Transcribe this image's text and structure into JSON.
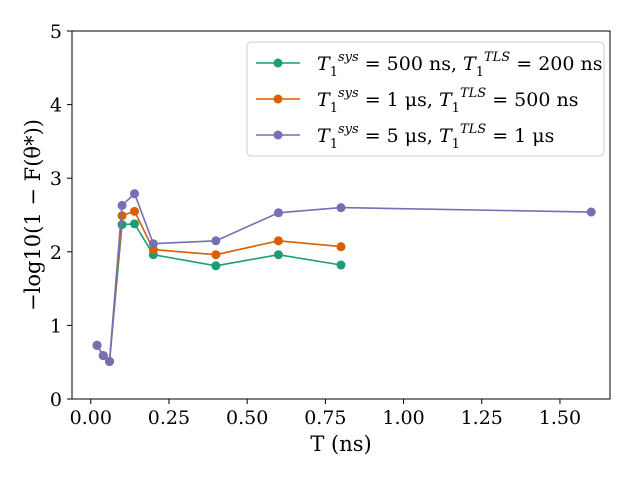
{
  "chart_data": {
    "type": "line",
    "title": "",
    "xlabel": "T (ns)",
    "ylabel": "−log10(1 − F(θ*))",
    "xlim": [
      -0.06,
      1.66
    ],
    "ylim": [
      0,
      5
    ],
    "xticks": [
      0.0,
      0.25,
      0.5,
      0.75,
      1.0,
      1.25,
      1.5
    ],
    "xtick_labels": [
      "0.00",
      "0.25",
      "0.50",
      "0.75",
      "1.00",
      "1.25",
      "1.50"
    ],
    "yticks": [
      0,
      1,
      2,
      3,
      4,
      5
    ],
    "ytick_labels": [
      "0",
      "1",
      "2",
      "3",
      "4",
      "5"
    ],
    "grid": false,
    "legend_position": "top-right",
    "series": [
      {
        "name": "T1^sys = 500 ns, T1^TLS = 200 ns",
        "legend_parts": [
          "T",
          "1",
          "sys",
          " = 500 ns, ",
          "T",
          "1",
          "TLS",
          " = 200 ns"
        ],
        "color": "#1b9e77",
        "x": [
          0.02,
          0.04,
          0.06,
          0.1,
          0.14,
          0.2,
          0.4,
          0.6,
          0.8
        ],
        "y": [
          0.73,
          0.59,
          0.51,
          2.37,
          2.38,
          1.96,
          1.81,
          1.96,
          1.82
        ]
      },
      {
        "name": "T1^sys = 1 μs, T1^TLS = 500 ns",
        "legend_parts": [
          "T",
          "1",
          "sys",
          " = 1 μs, ",
          "T",
          "1",
          "TLS",
          " = 500 ns"
        ],
        "color": "#d95f02",
        "x": [
          0.02,
          0.04,
          0.06,
          0.1,
          0.14,
          0.2,
          0.4,
          0.6,
          0.8
        ],
        "y": [
          0.73,
          0.59,
          0.51,
          2.49,
          2.55,
          2.03,
          1.96,
          2.15,
          2.07
        ]
      },
      {
        "name": "T1^sys = 5 μs, T1^TLS = 1 μs",
        "legend_parts": [
          "T",
          "1",
          "sys",
          " = 5 μs, ",
          "T",
          "1",
          "TLS",
          " = 1 μs"
        ],
        "color": "#7570b3",
        "x": [
          0.02,
          0.04,
          0.06,
          0.1,
          0.14,
          0.2,
          0.4,
          0.6,
          0.8,
          1.6
        ],
        "y": [
          0.73,
          0.59,
          0.51,
          2.63,
          2.79,
          2.11,
          2.15,
          2.53,
          2.6,
          2.54
        ]
      }
    ]
  }
}
